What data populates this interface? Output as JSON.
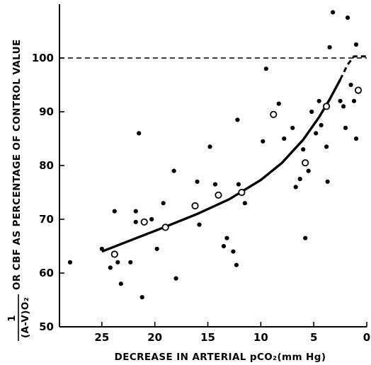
{
  "chart_data": {
    "type": "scatter",
    "title": "",
    "xlabel": "DECREASE IN ARTERIAL pCO₂(mm Hg)",
    "ylabel_frac_top": "1",
    "ylabel_frac_bottom": "(A-V)O₂",
    "ylabel_rest": "OR CBF AS PERCENTAGE OF CONTROL VALUE",
    "xlim": [
      29,
      0
    ],
    "ylim": [
      50,
      110
    ],
    "x_reversed": true,
    "x_ticks": [
      25,
      20,
      15,
      10,
      5,
      0
    ],
    "y_ticks": [
      50,
      60,
      70,
      80,
      90,
      100
    ],
    "grid": false,
    "reference_line_y": 100,
    "series": [
      {
        "marker": "filled-circle",
        "points": [
          [
            28,
            62
          ],
          [
            25,
            64.5
          ],
          [
            24.2,
            61
          ],
          [
            23.8,
            71.5
          ],
          [
            23.5,
            62
          ],
          [
            23.2,
            58
          ],
          [
            22.3,
            62
          ],
          [
            21.8,
            71.5
          ],
          [
            21.8,
            69.5
          ],
          [
            21.5,
            86
          ],
          [
            21.2,
            55.5
          ],
          [
            20.3,
            70
          ],
          [
            19.8,
            64.5
          ],
          [
            19.2,
            73
          ],
          [
            18.2,
            79
          ],
          [
            18,
            59
          ],
          [
            16,
            77
          ],
          [
            15.8,
            69
          ],
          [
            14.8,
            83.5
          ],
          [
            14.3,
            76.5
          ],
          [
            13.5,
            65
          ],
          [
            13.2,
            66.5
          ],
          [
            12.6,
            64
          ],
          [
            12.3,
            61.5
          ],
          [
            12.2,
            88.5
          ],
          [
            12.1,
            76.5
          ],
          [
            11.5,
            73
          ],
          [
            9.8,
            84.5
          ],
          [
            9.5,
            98
          ],
          [
            8.3,
            91.5
          ],
          [
            7.8,
            85
          ],
          [
            7,
            87
          ],
          [
            6.7,
            76
          ],
          [
            6.3,
            77.5
          ],
          [
            6,
            83
          ],
          [
            5.8,
            66.5
          ],
          [
            5.5,
            79
          ],
          [
            5.2,
            90
          ],
          [
            4.8,
            86
          ],
          [
            4.5,
            92
          ],
          [
            4.3,
            87.5
          ],
          [
            3.8,
            83.5
          ],
          [
            3.7,
            77
          ],
          [
            3.5,
            102
          ],
          [
            3.2,
            108.5
          ],
          [
            2.5,
            92
          ],
          [
            2.2,
            91
          ],
          [
            2,
            87
          ],
          [
            1.8,
            107.5
          ],
          [
            1.5,
            95
          ],
          [
            1.2,
            92
          ],
          [
            1,
            102.5
          ],
          [
            1,
            85
          ]
        ]
      },
      {
        "marker": "open-circle",
        "points": [
          [
            23.8,
            63.5
          ],
          [
            21,
            69.5
          ],
          [
            19,
            68.5
          ],
          [
            16.2,
            72.5
          ],
          [
            14,
            74.5
          ],
          [
            11.8,
            75
          ],
          [
            8.8,
            89.5
          ],
          [
            5.8,
            80.5
          ],
          [
            3.8,
            91
          ],
          [
            0.8,
            94
          ]
        ]
      }
    ],
    "fit_curve": {
      "style": "solid",
      "points": [
        [
          25,
          64
        ],
        [
          22,
          66.3
        ],
        [
          19,
          68.6
        ],
        [
          16,
          71
        ],
        [
          13,
          73.7
        ],
        [
          10,
          77.3
        ],
        [
          8,
          80.5
        ],
        [
          6,
          84.8
        ],
        [
          4.5,
          89
        ],
        [
          3.5,
          92.3
        ],
        [
          2.5,
          96
        ]
      ]
    },
    "fit_extension": {
      "style": "dashed",
      "points": [
        [
          2.5,
          96
        ],
        [
          1.8,
          98.8
        ],
        [
          1.2,
          100.3
        ],
        [
          0,
          100.3
        ]
      ]
    }
  }
}
